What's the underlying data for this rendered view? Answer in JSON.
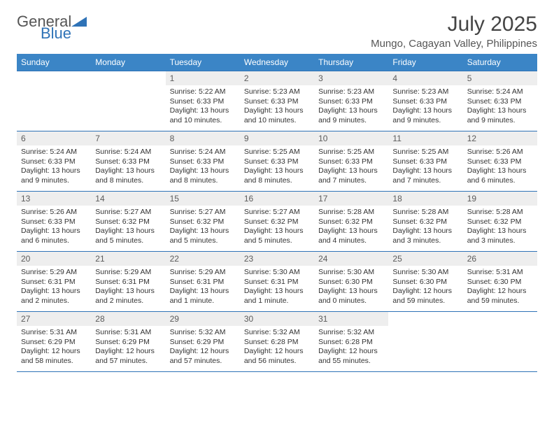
{
  "logo": {
    "text1": "General",
    "text2": "Blue"
  },
  "title": "July 2025",
  "location": "Mungo, Cagayan Valley, Philippines",
  "colors": {
    "header_bg": "#3b85c6",
    "header_text": "#ffffff",
    "daynum_bg": "#eeeeee",
    "border": "#2f73b7",
    "logo_blue": "#2f73b7"
  },
  "weekdays": [
    "Sunday",
    "Monday",
    "Tuesday",
    "Wednesday",
    "Thursday",
    "Friday",
    "Saturday"
  ],
  "weeks": [
    [
      null,
      null,
      {
        "n": "1",
        "sr": "Sunrise: 5:22 AM",
        "ss": "Sunset: 6:33 PM",
        "dl": "Daylight: 13 hours and 10 minutes."
      },
      {
        "n": "2",
        "sr": "Sunrise: 5:23 AM",
        "ss": "Sunset: 6:33 PM",
        "dl": "Daylight: 13 hours and 10 minutes."
      },
      {
        "n": "3",
        "sr": "Sunrise: 5:23 AM",
        "ss": "Sunset: 6:33 PM",
        "dl": "Daylight: 13 hours and 9 minutes."
      },
      {
        "n": "4",
        "sr": "Sunrise: 5:23 AM",
        "ss": "Sunset: 6:33 PM",
        "dl": "Daylight: 13 hours and 9 minutes."
      },
      {
        "n": "5",
        "sr": "Sunrise: 5:24 AM",
        "ss": "Sunset: 6:33 PM",
        "dl": "Daylight: 13 hours and 9 minutes."
      }
    ],
    [
      {
        "n": "6",
        "sr": "Sunrise: 5:24 AM",
        "ss": "Sunset: 6:33 PM",
        "dl": "Daylight: 13 hours and 9 minutes."
      },
      {
        "n": "7",
        "sr": "Sunrise: 5:24 AM",
        "ss": "Sunset: 6:33 PM",
        "dl": "Daylight: 13 hours and 8 minutes."
      },
      {
        "n": "8",
        "sr": "Sunrise: 5:24 AM",
        "ss": "Sunset: 6:33 PM",
        "dl": "Daylight: 13 hours and 8 minutes."
      },
      {
        "n": "9",
        "sr": "Sunrise: 5:25 AM",
        "ss": "Sunset: 6:33 PM",
        "dl": "Daylight: 13 hours and 8 minutes."
      },
      {
        "n": "10",
        "sr": "Sunrise: 5:25 AM",
        "ss": "Sunset: 6:33 PM",
        "dl": "Daylight: 13 hours and 7 minutes."
      },
      {
        "n": "11",
        "sr": "Sunrise: 5:25 AM",
        "ss": "Sunset: 6:33 PM",
        "dl": "Daylight: 13 hours and 7 minutes."
      },
      {
        "n": "12",
        "sr": "Sunrise: 5:26 AM",
        "ss": "Sunset: 6:33 PM",
        "dl": "Daylight: 13 hours and 6 minutes."
      }
    ],
    [
      {
        "n": "13",
        "sr": "Sunrise: 5:26 AM",
        "ss": "Sunset: 6:33 PM",
        "dl": "Daylight: 13 hours and 6 minutes."
      },
      {
        "n": "14",
        "sr": "Sunrise: 5:27 AM",
        "ss": "Sunset: 6:32 PM",
        "dl": "Daylight: 13 hours and 5 minutes."
      },
      {
        "n": "15",
        "sr": "Sunrise: 5:27 AM",
        "ss": "Sunset: 6:32 PM",
        "dl": "Daylight: 13 hours and 5 minutes."
      },
      {
        "n": "16",
        "sr": "Sunrise: 5:27 AM",
        "ss": "Sunset: 6:32 PM",
        "dl": "Daylight: 13 hours and 5 minutes."
      },
      {
        "n": "17",
        "sr": "Sunrise: 5:28 AM",
        "ss": "Sunset: 6:32 PM",
        "dl": "Daylight: 13 hours and 4 minutes."
      },
      {
        "n": "18",
        "sr": "Sunrise: 5:28 AM",
        "ss": "Sunset: 6:32 PM",
        "dl": "Daylight: 13 hours and 3 minutes."
      },
      {
        "n": "19",
        "sr": "Sunrise: 5:28 AM",
        "ss": "Sunset: 6:32 PM",
        "dl": "Daylight: 13 hours and 3 minutes."
      }
    ],
    [
      {
        "n": "20",
        "sr": "Sunrise: 5:29 AM",
        "ss": "Sunset: 6:31 PM",
        "dl": "Daylight: 13 hours and 2 minutes."
      },
      {
        "n": "21",
        "sr": "Sunrise: 5:29 AM",
        "ss": "Sunset: 6:31 PM",
        "dl": "Daylight: 13 hours and 2 minutes."
      },
      {
        "n": "22",
        "sr": "Sunrise: 5:29 AM",
        "ss": "Sunset: 6:31 PM",
        "dl": "Daylight: 13 hours and 1 minute."
      },
      {
        "n": "23",
        "sr": "Sunrise: 5:30 AM",
        "ss": "Sunset: 6:31 PM",
        "dl": "Daylight: 13 hours and 1 minute."
      },
      {
        "n": "24",
        "sr": "Sunrise: 5:30 AM",
        "ss": "Sunset: 6:30 PM",
        "dl": "Daylight: 13 hours and 0 minutes."
      },
      {
        "n": "25",
        "sr": "Sunrise: 5:30 AM",
        "ss": "Sunset: 6:30 PM",
        "dl": "Daylight: 12 hours and 59 minutes."
      },
      {
        "n": "26",
        "sr": "Sunrise: 5:31 AM",
        "ss": "Sunset: 6:30 PM",
        "dl": "Daylight: 12 hours and 59 minutes."
      }
    ],
    [
      {
        "n": "27",
        "sr": "Sunrise: 5:31 AM",
        "ss": "Sunset: 6:29 PM",
        "dl": "Daylight: 12 hours and 58 minutes."
      },
      {
        "n": "28",
        "sr": "Sunrise: 5:31 AM",
        "ss": "Sunset: 6:29 PM",
        "dl": "Daylight: 12 hours and 57 minutes."
      },
      {
        "n": "29",
        "sr": "Sunrise: 5:32 AM",
        "ss": "Sunset: 6:29 PM",
        "dl": "Daylight: 12 hours and 57 minutes."
      },
      {
        "n": "30",
        "sr": "Sunrise: 5:32 AM",
        "ss": "Sunset: 6:28 PM",
        "dl": "Daylight: 12 hours and 56 minutes."
      },
      {
        "n": "31",
        "sr": "Sunrise: 5:32 AM",
        "ss": "Sunset: 6:28 PM",
        "dl": "Daylight: 12 hours and 55 minutes."
      },
      null,
      null
    ]
  ]
}
